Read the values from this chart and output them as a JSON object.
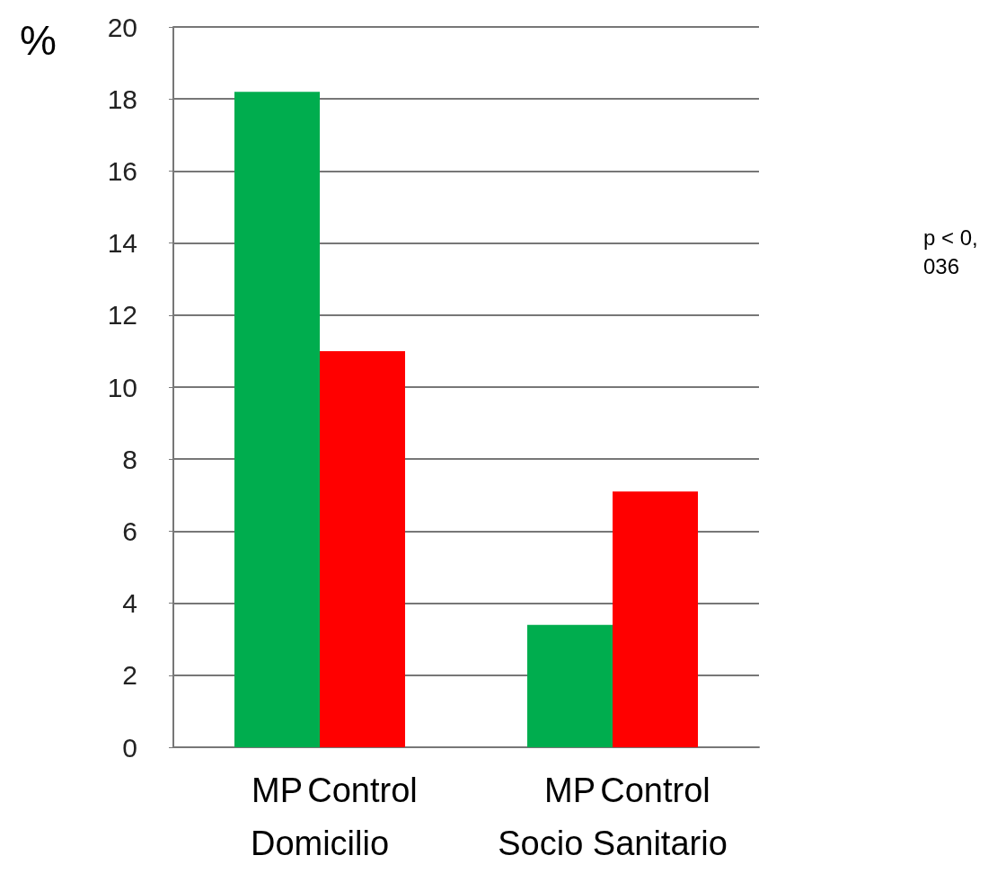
{
  "chart_data": {
    "type": "bar",
    "ylabel": "%",
    "categories": [
      "Domicilio",
      "Socio Sanitario"
    ],
    "series": [
      {
        "name": "MP",
        "color": "#00ad4e",
        "values": [
          18.2,
          3.4
        ]
      },
      {
        "name": "Control",
        "color": "#ff0000",
        "values": [
          11,
          7.1
        ]
      }
    ],
    "ylim": [
      0,
      20
    ],
    "yticks": [
      0,
      2,
      4,
      6,
      8,
      10,
      12,
      14,
      16,
      18,
      20
    ],
    "grid": "y",
    "annotations": [
      "p < 0,036"
    ]
  }
}
